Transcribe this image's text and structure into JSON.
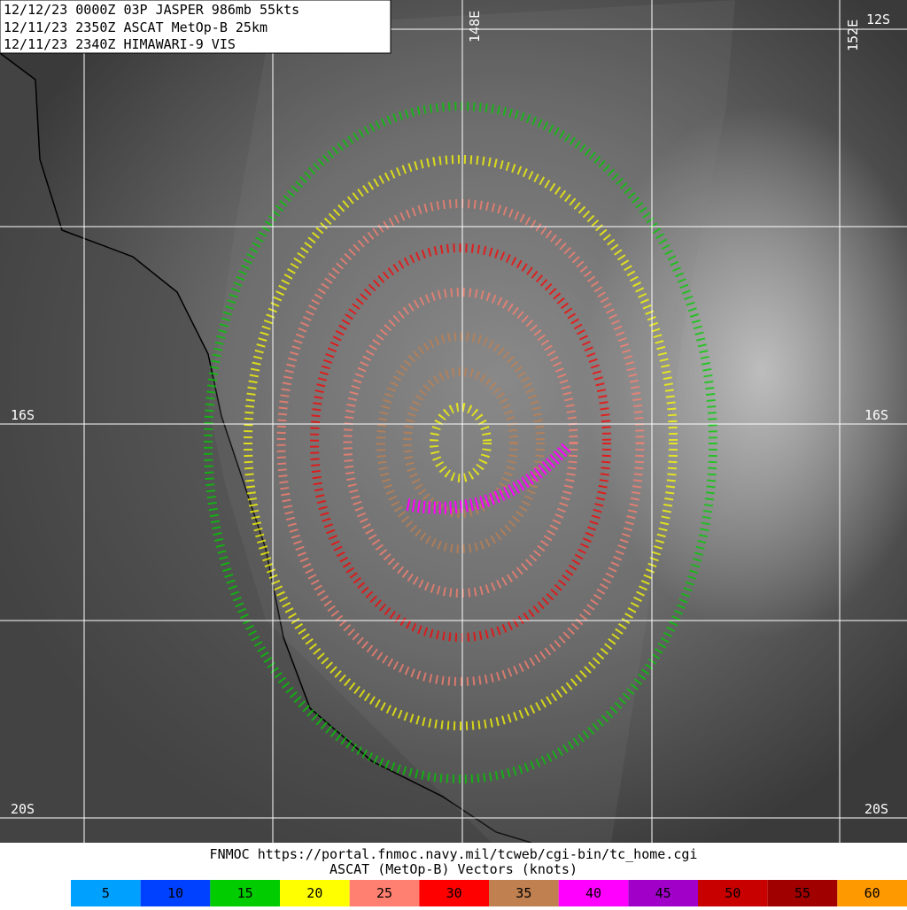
{
  "header": {
    "lines": [
      "12/12/23 0000Z  03P JASPER 986mb 55kts",
      "12/11/23 2350Z  ASCAT MetOp-B 25km",
      "12/11/23 2340Z  HIMAWARI-9 VIS"
    ]
  },
  "grid_labels": {
    "lon": [
      "148E",
      "152E"
    ],
    "lat_right": [
      "12S",
      "16S",
      "20S"
    ],
    "lat_left": [
      "16S",
      "20S"
    ]
  },
  "footer": {
    "source": "FNMOC https://portal.fnmoc.navy.mil/tcweb/cgi-bin/tc_home.cgi",
    "caption": "ASCAT (MetOp-B) Vectors (knots)"
  },
  "legend": [
    {
      "label": "5",
      "color": "#00a0ff"
    },
    {
      "label": "10",
      "color": "#0040ff"
    },
    {
      "label": "15",
      "color": "#00cc00"
    },
    {
      "label": "20",
      "color": "#ffff00"
    },
    {
      "label": "25",
      "color": "#ff8070"
    },
    {
      "label": "30",
      "color": "#ff0000"
    },
    {
      "label": "35",
      "color": "#c08050"
    },
    {
      "label": "40",
      "color": "#ff00ff"
    },
    {
      "label": "45",
      "color": "#a000c8"
    },
    {
      "label": "50",
      "color": "#c80000"
    },
    {
      "label": "55",
      "color": "#a00000"
    },
    {
      "label": "60",
      "color": "#ff9900"
    }
  ]
}
